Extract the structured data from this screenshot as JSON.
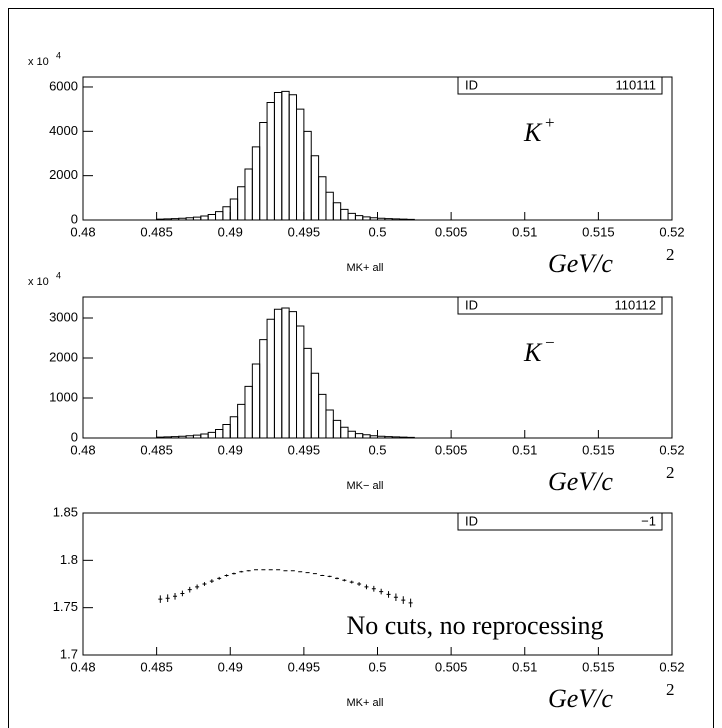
{
  "chart_data": [
    {
      "type": "histogram",
      "y_multiplier": "x 10",
      "y_multiplier_exp": "4",
      "id_label": "ID",
      "id": "110111",
      "annotation": "K",
      "annotation_sup": "+",
      "xlabel": "MK+ all",
      "unit_label": "GeV/c",
      "unit_label_exp": "2",
      "xlim": [
        0.48,
        0.52
      ],
      "xticks": [
        0.48,
        0.485,
        0.49,
        0.495,
        0.5,
        0.505,
        0.51,
        0.515,
        0.52
      ],
      "ylim": [
        0,
        6450
      ],
      "yticks": [
        0,
        2000,
        4000,
        6000
      ],
      "color": "#000000",
      "bins": [
        0.485,
        0.4855,
        0.486,
        0.4865,
        0.487,
        0.4875,
        0.488,
        0.4885,
        0.489,
        0.4895,
        0.49,
        0.4905,
        0.491,
        0.4915,
        0.492,
        0.4925,
        0.493,
        0.4935,
        0.494,
        0.4945,
        0.495,
        0.4955,
        0.496,
        0.4965,
        0.497,
        0.4975,
        0.498,
        0.4985,
        0.499,
        0.4995,
        0.5,
        0.5005,
        0.501,
        0.5015,
        0.502,
        0.5025
      ],
      "values": [
        40,
        50,
        60,
        80,
        100,
        130,
        180,
        250,
        380,
        600,
        950,
        1500,
        2300,
        3300,
        4400,
        5300,
        5750,
        5800,
        5650,
        5000,
        4000,
        2900,
        1950,
        1250,
        780,
        480,
        300,
        200,
        140,
        100,
        80,
        60,
        50,
        40,
        30
      ]
    },
    {
      "type": "histogram",
      "y_multiplier": "x 10",
      "y_multiplier_exp": "4",
      "id_label": "ID",
      "id": "110112",
      "annotation": "K",
      "annotation_sup": "−",
      "xlabel": "MK− all",
      "unit_label": "GeV/c",
      "unit_label_exp": "2",
      "xlim": [
        0.48,
        0.52
      ],
      "xticks": [
        0.48,
        0.485,
        0.49,
        0.495,
        0.5,
        0.505,
        0.51,
        0.515,
        0.52
      ],
      "ylim": [
        0,
        3525
      ],
      "yticks": [
        0,
        1000,
        2000,
        3000
      ],
      "color": "#000000",
      "bins": [
        0.485,
        0.4855,
        0.486,
        0.4865,
        0.487,
        0.4875,
        0.488,
        0.4885,
        0.489,
        0.4895,
        0.49,
        0.4905,
        0.491,
        0.4915,
        0.492,
        0.4925,
        0.493,
        0.4935,
        0.494,
        0.4945,
        0.495,
        0.4955,
        0.496,
        0.4965,
        0.497,
        0.4975,
        0.498,
        0.4985,
        0.499,
        0.4995,
        0.5,
        0.5005,
        0.501,
        0.5015,
        0.502,
        0.5025
      ],
      "values": [
        22,
        28,
        34,
        45,
        56,
        73,
        100,
        140,
        213,
        336,
        532,
        840,
        1290,
        1850,
        2460,
        2970,
        3220,
        3250,
        3160,
        2800,
        2240,
        1620,
        1090,
        700,
        440,
        270,
        170,
        110,
        80,
        56,
        45,
        34,
        28,
        22,
        17
      ]
    },
    {
      "type": "errorbar",
      "id_label": "ID",
      "id": "−1",
      "annotation": "No cuts, no reprocessing",
      "xlabel": "MK+ all",
      "unit_label": "GeV/c",
      "unit_label_exp": "2",
      "xlim": [
        0.48,
        0.52
      ],
      "xticks": [
        0.48,
        0.485,
        0.49,
        0.495,
        0.5,
        0.505,
        0.51,
        0.515,
        0.52
      ],
      "ylim": [
        1.7,
        1.85
      ],
      "yticks": [
        1.7,
        1.75,
        1.8,
        1.85
      ],
      "color": "#000000",
      "x": [
        0.48525,
        0.48575,
        0.48625,
        0.48675,
        0.48725,
        0.48775,
        0.48825,
        0.48875,
        0.48925,
        0.48975,
        0.49025,
        0.49075,
        0.49125,
        0.49175,
        0.49225,
        0.49275,
        0.49325,
        0.49375,
        0.49425,
        0.49475,
        0.49525,
        0.49575,
        0.49625,
        0.49675,
        0.49725,
        0.49775,
        0.49825,
        0.49875,
        0.49925,
        0.49975,
        0.50025,
        0.50075,
        0.50125,
        0.50175,
        0.50225
      ],
      "values": [
        1.759,
        1.76,
        1.762,
        1.765,
        1.769,
        1.772,
        1.775,
        1.778,
        1.781,
        1.784,
        1.786,
        1.788,
        1.789,
        1.79,
        1.79,
        1.79,
        1.79,
        1.789,
        1.789,
        1.788,
        1.787,
        1.786,
        1.784,
        1.783,
        1.781,
        1.779,
        1.777,
        1.775,
        1.772,
        1.77,
        1.767,
        1.764,
        1.761,
        1.758,
        1.755
      ],
      "errors": [
        0.004,
        0.004,
        0.0035,
        0.003,
        0.003,
        0.0025,
        0.002,
        0.002,
        0.0015,
        0.0012,
        0.001,
        0.0008,
        0.0006,
        0.0005,
        0.0004,
        0.0004,
        0.0003,
        0.0003,
        0.0003,
        0.0003,
        0.0004,
        0.0005,
        0.0006,
        0.0008,
        0.001,
        0.0012,
        0.0015,
        0.002,
        0.0025,
        0.003,
        0.003,
        0.0035,
        0.004,
        0.004,
        0.0045
      ]
    }
  ]
}
